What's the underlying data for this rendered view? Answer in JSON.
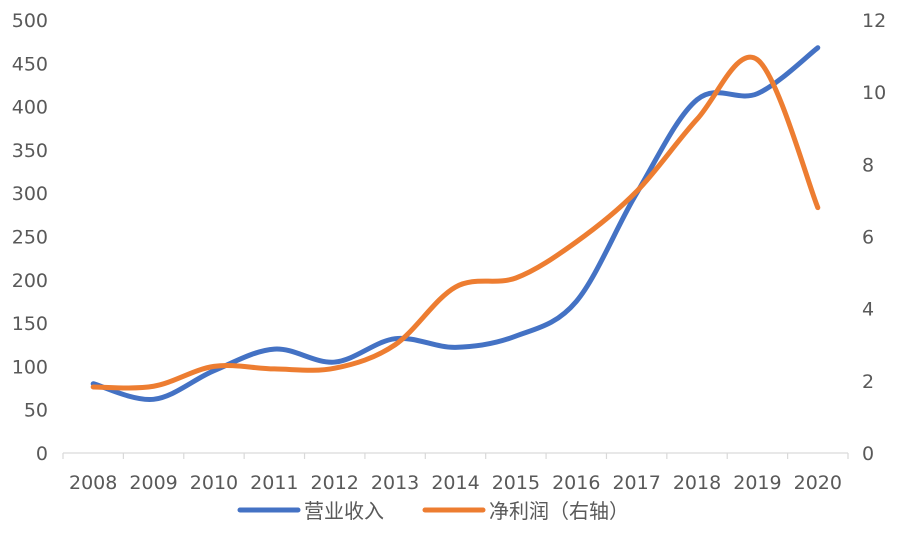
{
  "chart_data": {
    "type": "line",
    "title": "",
    "xlabel": "",
    "ylabel": "",
    "categories": [
      "2008",
      "2009",
      "2010",
      "2011",
      "2012",
      "2013",
      "2014",
      "2015",
      "2016",
      "2017",
      "2018",
      "2019",
      "2020"
    ],
    "ylim_left": [
      0,
      500
    ],
    "yticks_left": [
      0,
      50,
      100,
      150,
      200,
      250,
      300,
      350,
      400,
      450,
      500
    ],
    "ylim_right": [
      0,
      12
    ],
    "yticks_right": [
      0,
      2,
      4,
      6,
      8,
      10,
      12
    ],
    "grid": false,
    "legend_position": "bottom",
    "series": [
      {
        "name": "营业收入",
        "axis": "left",
        "color": "#4472C4",
        "values": [
          80,
          62,
          95,
          120,
          105,
          132,
          122,
          135,
          175,
          300,
          408,
          415,
          468
        ]
      },
      {
        "name": "净利润（右轴）",
        "axis": "right",
        "color": "#ED7D31",
        "values": [
          1.83,
          1.85,
          2.4,
          2.33,
          2.35,
          3.0,
          4.6,
          4.85,
          5.85,
          7.25,
          9.25,
          10.9,
          6.8
        ]
      }
    ]
  }
}
